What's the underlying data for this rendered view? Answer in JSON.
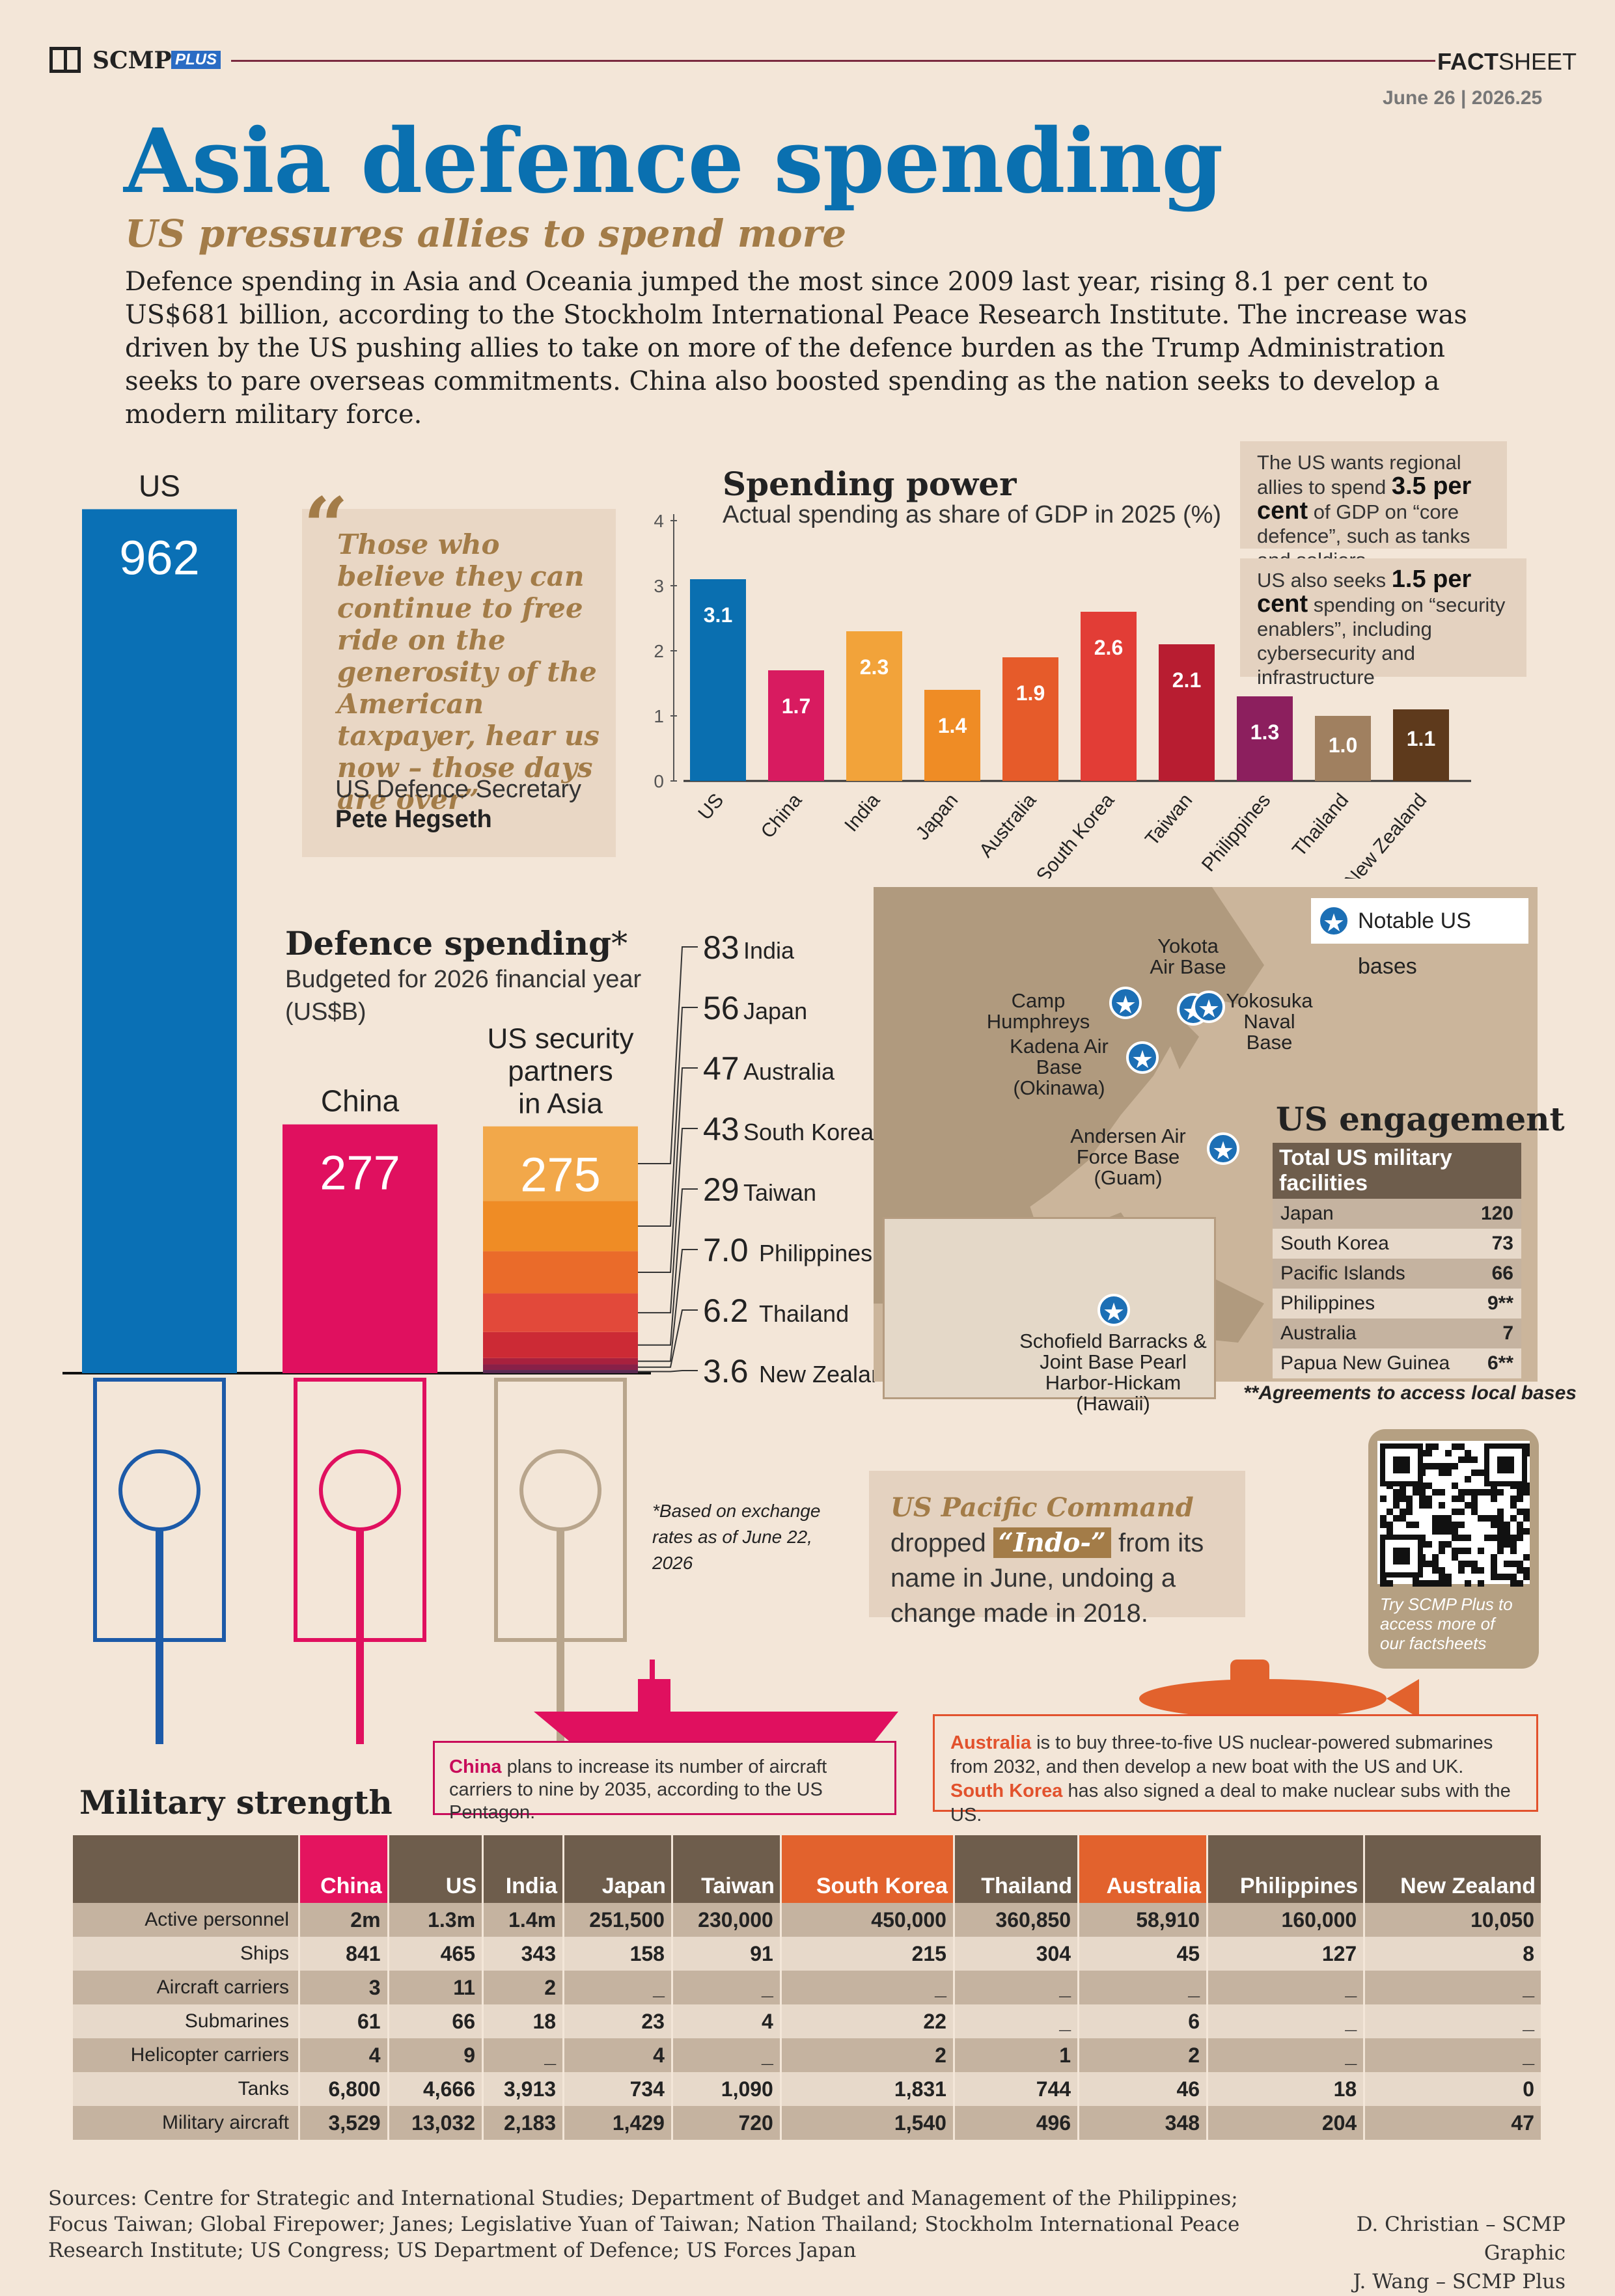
{
  "header": {
    "brand": "SCMP",
    "brand_plus": "PLUS",
    "factsheet_bold": "FACT",
    "factsheet_rest": "SHEET",
    "date": "June 26 | 2026.25"
  },
  "title": "Asia defence spending",
  "subtitle": "US pressures allies to spend more",
  "intro": "Defence spending in Asia and Oceania jumped the most since 2009 last year, rising 8.1 per cent to US$681 billion, according to the Stockholm International Peace Research Institute. The increase was driven by the US pushing allies to take on more of the defence burden as the Trump Administration seeks to pare overseas commitments. China also boosted spending as the nation seeks to develop a modern military force.",
  "quote": {
    "mark": "“",
    "text": "Those who believe they can continue to free ride on the generosity of the American taxpayer, hear us now – those days are over”",
    "role": "US Defence Secretary",
    "name": "Pete Hegseth"
  },
  "notes": {
    "note1_pre": "The US wants regional allies to spend ",
    "note1_bold": "3.5 per cent",
    "note1_post": " of GDP on “core defence”, such as tanks and soldiers",
    "note2_pre": "US also seeks ",
    "note2_bold": "1.5 per cent",
    "note2_post": " spending on “security enablers”, including cybersecurity and infrastructure"
  },
  "defence_spending": {
    "title": "Defence spending",
    "asterisk": "*",
    "subtitle": "Budgeted for 2026 financial year (US$B)",
    "partners_label": "US security partners in Asia",
    "footnote": "*Based on exchange rates as of June 22, 2026"
  },
  "pacific_command": {
    "name": "US Pacific Command",
    "text1": " dropped ",
    "highlight": "“Indo-”",
    "text2": " from its name in June, undoing a change made in 2018."
  },
  "map": {
    "legend": "Notable US bases",
    "bases": [
      "Yokota Air Base",
      "Camp Humphreys",
      "Yokosuka Naval Base",
      "Kadena Air Base (Okinawa)",
      "Andersen Air Force Base (Guam)",
      "Schofield Barracks & Joint Base Pearl Harbor-Hickam (Hawaii)"
    ],
    "engagement_title": "US engagement",
    "table_header": "Total US military facilities",
    "facilities": [
      {
        "country": "Japan",
        "count": "120"
      },
      {
        "country": "South Korea",
        "count": "73"
      },
      {
        "country": "Pacific Islands",
        "count": "66"
      },
      {
        "country": "Philippines",
        "count": "9**"
      },
      {
        "country": "Australia",
        "count": "7"
      },
      {
        "country": "Papua New Guinea",
        "count": "6**"
      }
    ],
    "footnote": "**Agreements to access local bases"
  },
  "qr_caption": "Try SCMP Plus to access more of our factsheets",
  "callouts": {
    "china_name": "China",
    "china_text": " plans to increase its number of aircraft carriers to nine by 2035, according to the US Pentagon.",
    "aus_name": "Australia",
    "aus_text": " is to buy three-to-five US nuclear-powered submarines from 2032, and then develop a new boat with the US and UK.",
    "sk_name": "South Korea",
    "sk_text": " has also signed a deal to make nuclear subs with the US."
  },
  "military": {
    "title": "Military strength",
    "countries": [
      "China",
      "US",
      "India",
      "Japan",
      "Taiwan",
      "South Korea",
      "Thailand",
      "Australia",
      "Philippines",
      "New Zealand"
    ],
    "rows": [
      {
        "label": "Active personnel",
        "values": [
          "2m",
          "1.3m",
          "1.4m",
          "251,500",
          "230,000",
          "450,000",
          "360,850",
          "58,910",
          "160,000",
          "10,050"
        ]
      },
      {
        "label": "Ships",
        "values": [
          "841",
          "465",
          "343",
          "158",
          "91",
          "215",
          "304",
          "45",
          "127",
          "8"
        ]
      },
      {
        "label": "Aircraft carriers",
        "values": [
          "3",
          "11",
          "2",
          "_",
          "_",
          "_",
          "_",
          "_",
          "_",
          "_"
        ]
      },
      {
        "label": "Submarines",
        "values": [
          "61",
          "66",
          "18",
          "23",
          "4",
          "22",
          "_",
          "6",
          "_",
          "_"
        ]
      },
      {
        "label": "Helicopter carriers",
        "values": [
          "4",
          "9",
          "_",
          "4",
          "_",
          "2",
          "1",
          "2",
          "_",
          "_"
        ]
      },
      {
        "label": "Tanks",
        "values": [
          "6,800",
          "4,666",
          "3,913",
          "734",
          "1,090",
          "1,831",
          "744",
          "46",
          "18",
          "0"
        ]
      },
      {
        "label": "Military aircraft",
        "values": [
          "3,529",
          "13,032",
          "2,183",
          "1,429",
          "720",
          "1,540",
          "496",
          "348",
          "204",
          "47"
        ]
      }
    ]
  },
  "footer": {
    "sources": "Sources: Centre for Strategic and International Studies; Department of Budget and Management of the Philippines; Focus Taiwan; Global Firepower; Janes; Legislative Yuan of Taiwan; Nation Thailand; Stockholm International Peace Research Institute; US Congress; US Department of Defence; US Forces Japan",
    "credit1": "D. Christian – SCMP Graphic",
    "credit2": "J. Wang – SCMP Plus"
  },
  "chart_data": [
    {
      "type": "bar",
      "title": "Spending power",
      "subtitle": "Actual spending as share of GDP in 2025 (%)",
      "categories": [
        "US",
        "China",
        "India",
        "Japan",
        "Australia",
        "South Korea",
        "Taiwan",
        "Philippines",
        "Thailand",
        "New Zealand"
      ],
      "values": [
        3.1,
        1.7,
        2.3,
        1.4,
        1.9,
        2.6,
        2.1,
        1.3,
        1.0,
        1.1
      ],
      "labels": [
        "3.1",
        "1.7",
        "2.3",
        "1.4",
        "1.9",
        "2.6",
        "2.1",
        "1.3",
        "1.0",
        "1.1"
      ],
      "colors": [
        "#0a6fb0",
        "#d81b60",
        "#f2a33a",
        "#ef8c25",
        "#e65b2a",
        "#e23d36",
        "#b81d31",
        "#8c1f5e",
        "#a08060",
        "#5e3a1c"
      ],
      "yticks": [
        "0",
        "1",
        "2",
        "3",
        "4"
      ],
      "ylim": [
        0,
        4.3
      ],
      "grid": false
    },
    {
      "type": "bar",
      "title": "Defence spending",
      "subtitle": "Budgeted for 2026 financial year (US$B)",
      "categories": [
        "US",
        "China",
        "US security partners in Asia"
      ],
      "values": [
        962,
        277,
        275
      ],
      "labels": [
        "962",
        "277",
        "275"
      ],
      "colors": [
        "#0a70b5",
        "#e0105f",
        "#f0a23a"
      ],
      "stacked_partners": [
        {
          "name": "India",
          "value": 83,
          "label": "83",
          "color": "#f2a84a"
        },
        {
          "name": "Japan",
          "value": 56,
          "label": "56",
          "color": "#ef8c25"
        },
        {
          "name": "Australia",
          "value": 47,
          "label": "47",
          "color": "#ea6b2a"
        },
        {
          "name": "South Korea",
          "value": 43,
          "label": "43",
          "color": "#e2493a"
        },
        {
          "name": "Taiwan",
          "value": 29,
          "label": "29",
          "color": "#cc2a35"
        },
        {
          "name": "Philippines",
          "value": 7.0,
          "label": "7.0",
          "color": "#a8213e"
        },
        {
          "name": "Thailand",
          "value": 6.2,
          "label": "6.2",
          "color": "#882048"
        },
        {
          "name": "New Zealand",
          "value": 3.6,
          "label": "3.6",
          "color": "#5c2a52"
        }
      ]
    }
  ]
}
